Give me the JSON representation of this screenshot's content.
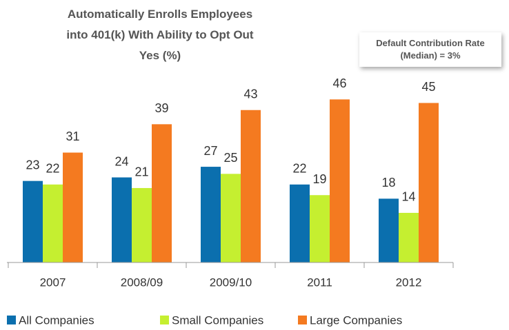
{
  "chart_data": {
    "type": "bar",
    "title": "Automatically Enrolls Employees into 401(k) With Ability to Opt Out",
    "subtitle": "Yes (%)",
    "annotation": "Default Contribution Rate (Median) = 3%",
    "categories": [
      "2007",
      "2008/09",
      "2009/10",
      "2011",
      "2012"
    ],
    "series": [
      {
        "name": "All Companies",
        "color": "#0b6fae",
        "values": [
          23,
          24,
          27,
          22,
          18
        ]
      },
      {
        "name": "Small Companies",
        "color": "#c5ef30",
        "values": [
          22,
          21,
          25,
          19,
          14
        ]
      },
      {
        "name": "Large Companies",
        "color": "#f47a20",
        "values": [
          31,
          39,
          43,
          46,
          45
        ]
      }
    ],
    "ylim": [
      0,
      55
    ],
    "legend": "bottom"
  }
}
